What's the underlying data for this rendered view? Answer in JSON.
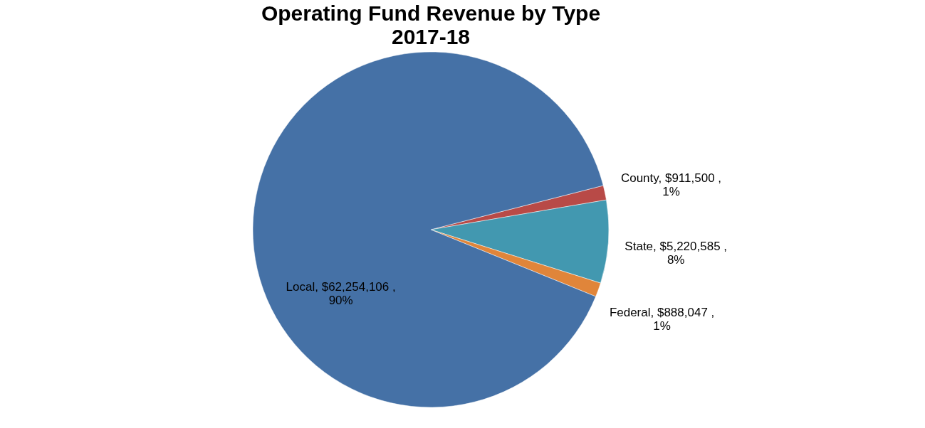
{
  "chart_data": {
    "type": "pie",
    "title": "Operating Fund Revenue by Type",
    "subtitle": "2017-18",
    "categories": [
      "County",
      "State",
      "Federal",
      "Local"
    ],
    "values": [
      911500,
      5220585,
      888047,
      62254106
    ],
    "colors": [
      "#b84a47",
      "#4298b0",
      "#e0853a",
      "#4571a6"
    ],
    "value_labels": [
      "$911,500 , 1%",
      "$5,220,585 , 8%",
      "$888,047 , 1%",
      "$62,254,106 , 90%"
    ],
    "legend": false
  }
}
